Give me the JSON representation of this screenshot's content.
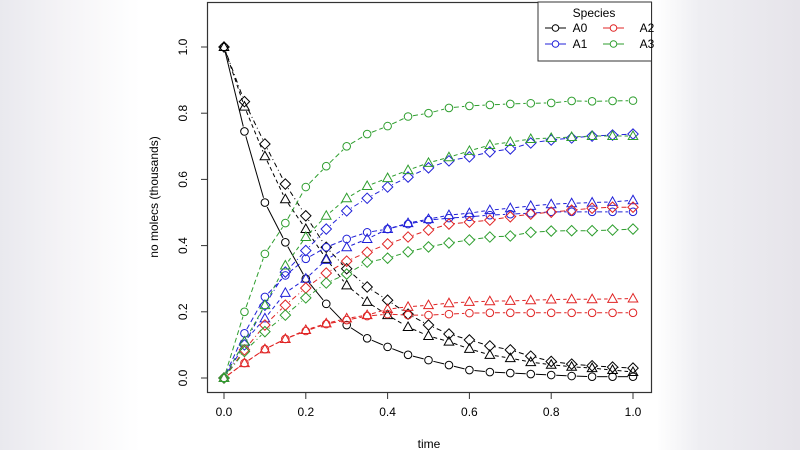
{
  "chart_data": {
    "type": "line",
    "title": "",
    "xlabel": "time",
    "ylabel": "no molecs (thousands)",
    "xlim": [
      0,
      1
    ],
    "ylim": [
      0,
      1.1
    ],
    "xticks": [
      "0.0",
      "0.2",
      "0.4",
      "0.6",
      "0.8",
      "1.0"
    ],
    "yticks": [
      "0.0",
      "0.2",
      "0.4",
      "0.6",
      "0.8",
      "1.0"
    ],
    "grid": false,
    "legend": {
      "title": "Species",
      "placement": "top-right",
      "entries": [
        {
          "label": "A0",
          "color": "#000000"
        },
        {
          "label": "A1",
          "color": "#2020d8"
        },
        {
          "label": "A2",
          "color": "#e02424"
        },
        {
          "label": "A3",
          "color": "#2e9e2e"
        }
      ]
    },
    "x": [
      0,
      0.05,
      0.1,
      0.15,
      0.2,
      0.25,
      0.3,
      0.35,
      0.4,
      0.45,
      0.5,
      0.55,
      0.6,
      0.65,
      0.7,
      0.75,
      0.8,
      0.85,
      0.9,
      0.95,
      1.0
    ],
    "series": [
      {
        "name": "A0",
        "marker": "circle",
        "color": "#000000",
        "values": [
          1,
          0.745,
          0.53,
          0.41,
          0.3,
          0.224,
          0.16,
          0.12,
          0.094,
          0.07,
          0.054,
          0.039,
          0.024,
          0.018,
          0.015,
          0.012,
          0.009,
          0.006,
          0.004,
          0.004,
          0.004
        ]
      },
      {
        "name": "A0",
        "marker": "triangle",
        "color": "#000000",
        "values": [
          1,
          0.82,
          0.67,
          0.54,
          0.45,
          0.36,
          0.28,
          0.23,
          0.19,
          0.154,
          0.127,
          0.11,
          0.088,
          0.07,
          0.06,
          0.048,
          0.04,
          0.034,
          0.03,
          0.024,
          0.018
        ]
      },
      {
        "name": "A0",
        "marker": "diamond",
        "color": "#000000",
        "values": [
          1,
          0.835,
          0.707,
          0.586,
          0.49,
          0.395,
          0.33,
          0.275,
          0.235,
          0.193,
          0.16,
          0.133,
          0.115,
          0.097,
          0.085,
          0.066,
          0.05,
          0.042,
          0.037,
          0.033,
          0.03
        ]
      },
      {
        "name": "A1",
        "marker": "circle",
        "color": "#2020d8",
        "values": [
          0,
          0.135,
          0.245,
          0.31,
          0.36,
          0.395,
          0.42,
          0.44,
          0.45,
          0.465,
          0.477,
          0.483,
          0.487,
          0.492,
          0.495,
          0.498,
          0.502,
          0.502,
          0.502,
          0.502,
          0.502
        ]
      },
      {
        "name": "A1",
        "marker": "triangle",
        "color": "#2020d8",
        "values": [
          0,
          0.11,
          0.18,
          0.257,
          0.3,
          0.357,
          0.395,
          0.42,
          0.45,
          0.468,
          0.48,
          0.492,
          0.498,
          0.507,
          0.513,
          0.52,
          0.525,
          0.528,
          0.53,
          0.532,
          0.537
        ]
      },
      {
        "name": "A1",
        "marker": "diamond",
        "color": "#2020d8",
        "values": [
          0,
          0.1,
          0.22,
          0.32,
          0.385,
          0.45,
          0.505,
          0.543,
          0.577,
          0.607,
          0.635,
          0.656,
          0.668,
          0.683,
          0.692,
          0.71,
          0.719,
          0.725,
          0.731,
          0.734,
          0.737
        ]
      },
      {
        "name": "A2",
        "marker": "circle",
        "color": "#e02424",
        "values": [
          0,
          0.045,
          0.087,
          0.118,
          0.142,
          0.163,
          0.175,
          0.187,
          0.193,
          0.19,
          0.19,
          0.193,
          0.196,
          0.197,
          0.197,
          0.197,
          0.197,
          0.197,
          0.197,
          0.197,
          0.197
        ]
      },
      {
        "name": "A2",
        "marker": "triangle",
        "color": "#e02424",
        "values": [
          0,
          0.045,
          0.087,
          0.118,
          0.145,
          0.165,
          0.18,
          0.19,
          0.208,
          0.215,
          0.22,
          0.226,
          0.23,
          0.232,
          0.233,
          0.235,
          0.237,
          0.238,
          0.238,
          0.239,
          0.24
        ]
      },
      {
        "name": "A2",
        "marker": "diamond",
        "color": "#e02424",
        "values": [
          0,
          0.085,
          0.16,
          0.22,
          0.272,
          0.317,
          0.353,
          0.38,
          0.405,
          0.426,
          0.447,
          0.465,
          0.471,
          0.477,
          0.487,
          0.495,
          0.501,
          0.507,
          0.513,
          0.516,
          0.516
        ]
      },
      {
        "name": "A3",
        "marker": "circle",
        "color": "#2e9e2e",
        "values": [
          0,
          0.2,
          0.375,
          0.468,
          0.577,
          0.64,
          0.7,
          0.737,
          0.761,
          0.79,
          0.8,
          0.816,
          0.822,
          0.825,
          0.828,
          0.83,
          0.831,
          0.837,
          0.836,
          0.837,
          0.838
        ]
      },
      {
        "name": "A3",
        "marker": "triangle",
        "color": "#2e9e2e",
        "values": [
          0,
          0.11,
          0.22,
          0.34,
          0.426,
          0.49,
          0.543,
          0.58,
          0.604,
          0.628,
          0.65,
          0.667,
          0.686,
          0.704,
          0.713,
          0.722,
          0.725,
          0.728,
          0.731,
          0.731,
          0.731
        ]
      },
      {
        "name": "A3",
        "marker": "diamond",
        "color": "#2e9e2e",
        "values": [
          0,
          0.08,
          0.14,
          0.19,
          0.242,
          0.287,
          0.314,
          0.35,
          0.362,
          0.381,
          0.396,
          0.408,
          0.417,
          0.426,
          0.429,
          0.44,
          0.444,
          0.445,
          0.445,
          0.447,
          0.45
        ]
      }
    ]
  }
}
